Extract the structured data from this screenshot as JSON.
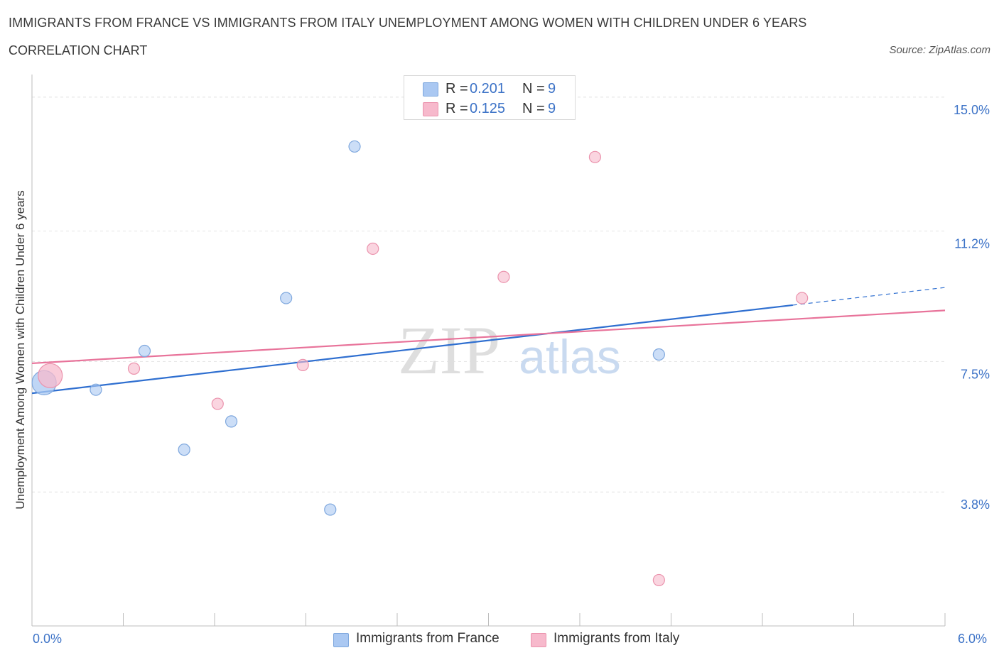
{
  "title": "IMMIGRANTS FROM FRANCE VS IMMIGRANTS FROM ITALY UNEMPLOYMENT AMONG WOMEN WITH CHILDREN UNDER 6 YEARS",
  "subtitle": "CORRELATION CHART",
  "source": "Source: ZipAtlas.com",
  "watermark": {
    "zip": "ZIP",
    "atlas": "atlas"
  },
  "legend": {
    "r_label": "R =",
    "n_label": "N =",
    "rows": [
      {
        "r": "0.201",
        "n": "9",
        "color": "#aac8f2"
      },
      {
        "r": "0.125",
        "n": "9",
        "color": "#f7b9cc"
      }
    ]
  },
  "bottom_legend": {
    "france": "Immigrants from France",
    "italy": "Immigrants from Italy"
  },
  "chart_data": {
    "type": "scatter",
    "title": "IMMIGRANTS FROM FRANCE VS IMMIGRANTS FROM ITALY UNEMPLOYMENT AMONG WOMEN WITH CHILDREN UNDER 6 YEARS",
    "xlabel": "",
    "ylabel": "Unemployment Among Women with Children Under 6 years",
    "xlim": [
      0.0,
      6.0
    ],
    "ylim": [
      0.0,
      15.4
    ],
    "x_tick_labels": [
      "0.0%",
      "6.0%"
    ],
    "y_ticks": [
      {
        "value": 3.8,
        "label": "3.8%"
      },
      {
        "value": 7.5,
        "label": "7.5%"
      },
      {
        "value": 11.2,
        "label": "11.2%"
      },
      {
        "value": 15.0,
        "label": "15.0%"
      }
    ],
    "grid": true,
    "series": [
      {
        "name": "Immigrants from France",
        "color": "#aac8f2",
        "stroke": "#7fa8de",
        "line_color": "#2f6fd0",
        "points": [
          {
            "x": 0.08,
            "y": 6.9,
            "large": true
          },
          {
            "x": 0.42,
            "y": 6.7
          },
          {
            "x": 0.74,
            "y": 7.8
          },
          {
            "x": 1.0,
            "y": 5.0
          },
          {
            "x": 1.31,
            "y": 5.8
          },
          {
            "x": 1.67,
            "y": 9.3
          },
          {
            "x": 1.96,
            "y": 3.3
          },
          {
            "x": 2.12,
            "y": 13.6
          },
          {
            "x": 4.12,
            "y": 7.7
          }
        ],
        "trend": {
          "x0": 0.0,
          "y0": 6.6,
          "x1": 5.0,
          "y1": 9.1,
          "dash_to_x": 6.0,
          "dash_to_y": 9.6
        }
      },
      {
        "name": "Immigrants from Italy",
        "color": "#f7b9cc",
        "stroke": "#eb93ad",
        "line_color": "#e8739a",
        "points": [
          {
            "x": 0.12,
            "y": 7.1,
            "large": true
          },
          {
            "x": 0.67,
            "y": 7.3
          },
          {
            "x": 1.22,
            "y": 6.3
          },
          {
            "x": 1.78,
            "y": 7.4
          },
          {
            "x": 2.24,
            "y": 10.7
          },
          {
            "x": 3.1,
            "y": 9.9
          },
          {
            "x": 3.7,
            "y": 13.3
          },
          {
            "x": 4.12,
            "y": 1.3
          },
          {
            "x": 5.06,
            "y": 9.3
          }
        ],
        "trend": {
          "x0": 0.0,
          "y0": 7.45,
          "x1": 6.0,
          "y1": 8.95
        }
      }
    ]
  }
}
